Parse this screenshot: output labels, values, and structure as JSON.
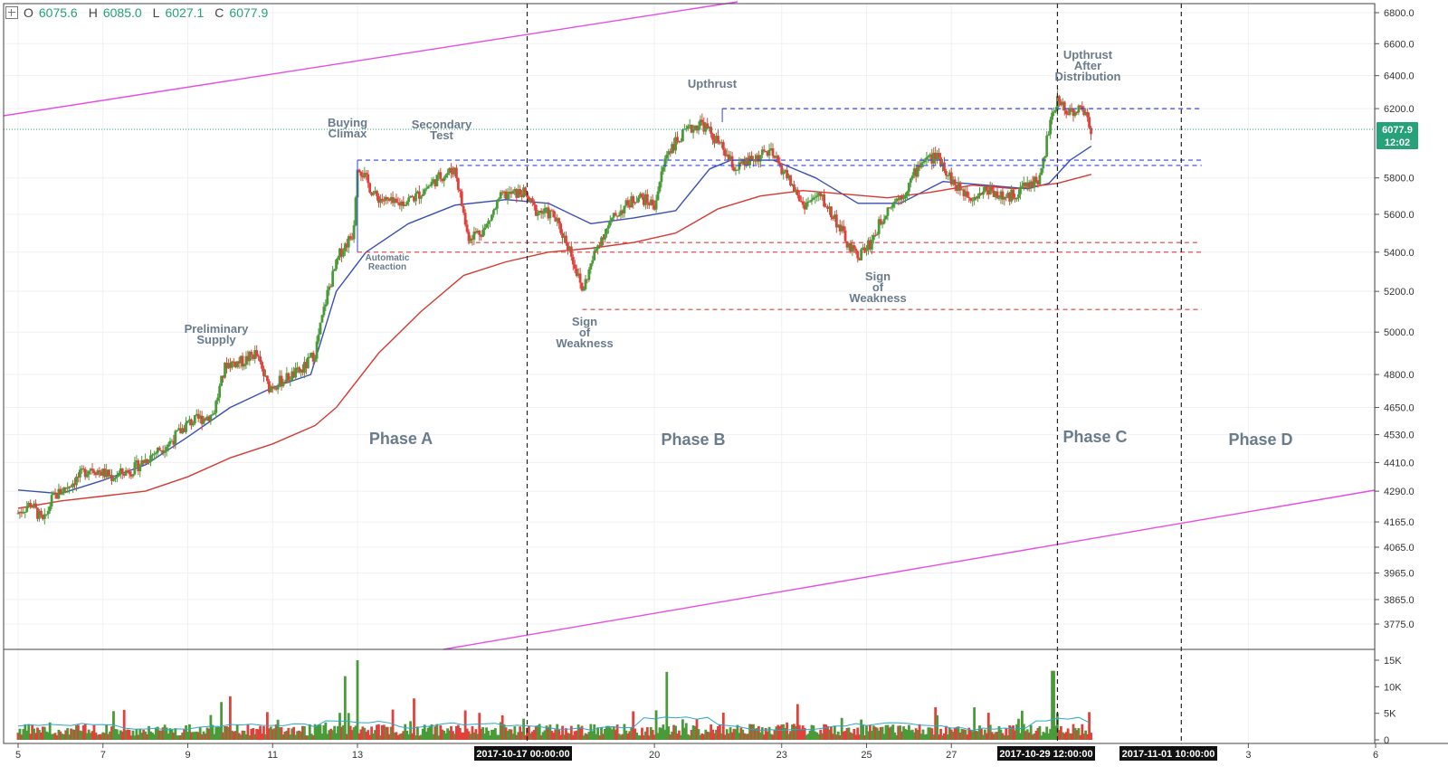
{
  "ohlc": {
    "open_label": "O",
    "open": "6075.6",
    "high_label": "H",
    "high": "6085.0",
    "low_label": "L",
    "low": "6027.1",
    "close_label": "C",
    "close": "6077.9"
  },
  "price_axis": {
    "ticks": [
      "6800.0",
      "6600.0",
      "6400.0",
      "6200.0",
      "5800.0",
      "5600.0",
      "5400.0",
      "5200.0",
      "5000.0",
      "4800.0",
      "4650.0",
      "4530.0",
      "4410.0",
      "4290.0",
      "4165.0",
      "4065.0",
      "3965.0",
      "3865.0",
      "3775.0"
    ],
    "last_price_label": "6077.9",
    "countdown_label": "12:02"
  },
  "volume_axis": {
    "ticks": [
      "15K",
      "10K",
      "5K",
      "0"
    ]
  },
  "x_axis": {
    "ticks": [
      "5",
      "7",
      "9",
      "11",
      "13",
      "20",
      "23",
      "25",
      "27",
      "3",
      "6"
    ],
    "highlight_labels": [
      "2017-10-17 00:00:00",
      "2017-10-29 12:00:00",
      "2017-11-01 10:00:00"
    ]
  },
  "annotations": {
    "preliminary_supply": [
      "Preliminary",
      "Supply"
    ],
    "buying_climax": [
      "Buying",
      "Climax"
    ],
    "secondary_test": [
      "Secondary",
      "Test"
    ],
    "automatic_reaction": [
      "Automatic",
      "Reaction"
    ],
    "upthrust": "Upthrust",
    "upthrust_after_distribution": [
      "Upthrust",
      "After",
      "Distribution"
    ],
    "sign_of_weakness_1": [
      "Sign",
      "of",
      "Weakness"
    ],
    "sign_of_weakness_2": [
      "Sign",
      "of",
      "Weakness"
    ]
  },
  "phases": [
    "Phase A",
    "Phase B",
    "Phase C",
    "Phase D"
  ],
  "colors": {
    "up": "#4a9a3a",
    "down": "#e0413b",
    "ma_fast": "#3a4fb3",
    "ma_slow": "#d43a32",
    "trendline": "#e64ce6",
    "level_blue": "#3346d9",
    "level_red": "#e0413b",
    "label_bg": "#26a17a",
    "annotation": "#6a7b8c"
  },
  "chart_data": {
    "type": "candlestick",
    "timeframe_note": "2017-10-05 to 2017-11-06",
    "price_path": [
      [
        5,
        4200
      ],
      [
        5.3,
        4240
      ],
      [
        5.6,
        4160
      ],
      [
        5.8,
        4260
      ],
      [
        6.3,
        4330
      ],
      [
        6.7,
        4390
      ],
      [
        7.2,
        4350
      ],
      [
        7.7,
        4380
      ],
      [
        8.2,
        4450
      ],
      [
        8.6,
        4500
      ],
      [
        9.0,
        4580
      ],
      [
        9.3,
        4600
      ],
      [
        9.6,
        4620
      ],
      [
        9.9,
        4850
      ],
      [
        10.3,
        4860
      ],
      [
        10.6,
        4900
      ],
      [
        10.9,
        4740
      ],
      [
        11.3,
        4780
      ],
      [
        11.7,
        4820
      ],
      [
        12.0,
        4900
      ],
      [
        12.3,
        5200
      ],
      [
        12.6,
        5400
      ],
      [
        12.9,
        5500
      ],
      [
        13.0,
        5880
      ],
      [
        13.4,
        5700
      ],
      [
        13.9,
        5650
      ],
      [
        14.4,
        5700
      ],
      [
        14.9,
        5800
      ],
      [
        15.3,
        5850
      ],
      [
        15.6,
        5480
      ],
      [
        16.0,
        5520
      ],
      [
        16.4,
        5700
      ],
      [
        16.9,
        5720
      ],
      [
        17.2,
        5620
      ],
      [
        17.6,
        5600
      ],
      [
        18.0,
        5420
      ],
      [
        18.3,
        5200
      ],
      [
        18.7,
        5460
      ],
      [
        19.1,
        5600
      ],
      [
        19.6,
        5700
      ],
      [
        20.0,
        5650
      ],
      [
        20.3,
        5950
      ],
      [
        20.7,
        6050
      ],
      [
        21.1,
        6120
      ],
      [
        21.5,
        6000
      ],
      [
        21.9,
        5850
      ],
      [
        22.3,
        5900
      ],
      [
        22.7,
        5950
      ],
      [
        23.1,
        5820
      ],
      [
        23.5,
        5650
      ],
      [
        23.9,
        5700
      ],
      [
        24.3,
        5560
      ],
      [
        24.6,
        5420
      ],
      [
        24.8,
        5380
      ],
      [
        25.1,
        5450
      ],
      [
        25.5,
        5640
      ],
      [
        25.9,
        5720
      ],
      [
        26.3,
        5900
      ],
      [
        26.7,
        5920
      ],
      [
        27.1,
        5750
      ],
      [
        27.5,
        5700
      ],
      [
        27.9,
        5740
      ],
      [
        28.3,
        5680
      ],
      [
        28.7,
        5750
      ],
      [
        29.1,
        5800
      ],
      [
        29.3,
        6080
      ],
      [
        29.5,
        6250
      ],
      [
        29.8,
        6180
      ],
      [
        30.1,
        6200
      ],
      [
        30.3,
        6077.9
      ]
    ],
    "ma_fast": [
      [
        5,
        4295
      ],
      [
        6,
        4280
      ],
      [
        7,
        4335
      ],
      [
        8,
        4400
      ],
      [
        9,
        4520
      ],
      [
        10,
        4650
      ],
      [
        11,
        4740
      ],
      [
        11.9,
        4800
      ],
      [
        12.5,
        5200
      ],
      [
        13.2,
        5400
      ],
      [
        14.2,
        5550
      ],
      [
        15.3,
        5650
      ],
      [
        16.5,
        5680
      ],
      [
        17.5,
        5660
      ],
      [
        18.5,
        5550
      ],
      [
        19.5,
        5580
      ],
      [
        20.5,
        5620
      ],
      [
        21.3,
        5850
      ],
      [
        21.8,
        5900
      ],
      [
        22.8,
        5900
      ],
      [
        23.8,
        5800
      ],
      [
        24.8,
        5660
      ],
      [
        25.8,
        5660
      ],
      [
        26.8,
        5780
      ],
      [
        27.8,
        5760
      ],
      [
        28.8,
        5740
      ],
      [
        29.3,
        5770
      ],
      [
        29.8,
        5900
      ],
      [
        30.3,
        5980
      ]
    ],
    "ma_slow": [
      [
        5,
        4220
      ],
      [
        6,
        4250
      ],
      [
        7,
        4270
      ],
      [
        8,
        4290
      ],
      [
        9,
        4350
      ],
      [
        10,
        4430
      ],
      [
        11,
        4490
      ],
      [
        12,
        4570
      ],
      [
        12.5,
        4650
      ],
      [
        13.5,
        4900
      ],
      [
        14.5,
        5100
      ],
      [
        15.5,
        5280
      ],
      [
        16.5,
        5350
      ],
      [
        17.5,
        5400
      ],
      [
        18.5,
        5420
      ],
      [
        19.5,
        5450
      ],
      [
        20.5,
        5500
      ],
      [
        21.5,
        5630
      ],
      [
        22.5,
        5700
      ],
      [
        23.5,
        5730
      ],
      [
        24.5,
        5710
      ],
      [
        25.5,
        5690
      ],
      [
        26.5,
        5720
      ],
      [
        27.5,
        5760
      ],
      [
        28.5,
        5740
      ],
      [
        29.5,
        5770
      ],
      [
        30.3,
        5820
      ]
    ],
    "resistance_levels": [
      5870,
      5900,
      6200
    ],
    "support_levels": [
      5400,
      5450,
      5110
    ],
    "phase_boundaries": [
      "2017-10-17 00:00:00",
      "2017-10-29 12:00:00",
      "2017-11-01 10:00:00"
    ],
    "volume_ylim": [
      0,
      15000
    ],
    "volume_spikes": [
      [
        10.0,
        8200
      ],
      [
        12.7,
        12000
      ],
      [
        13.0,
        15000
      ],
      [
        20.3,
        12800
      ],
      [
        29.4,
        13000
      ]
    ],
    "ylim": [
      3700,
      6900
    ],
    "xlim": [
      5,
      37
    ],
    "scale": "log"
  }
}
